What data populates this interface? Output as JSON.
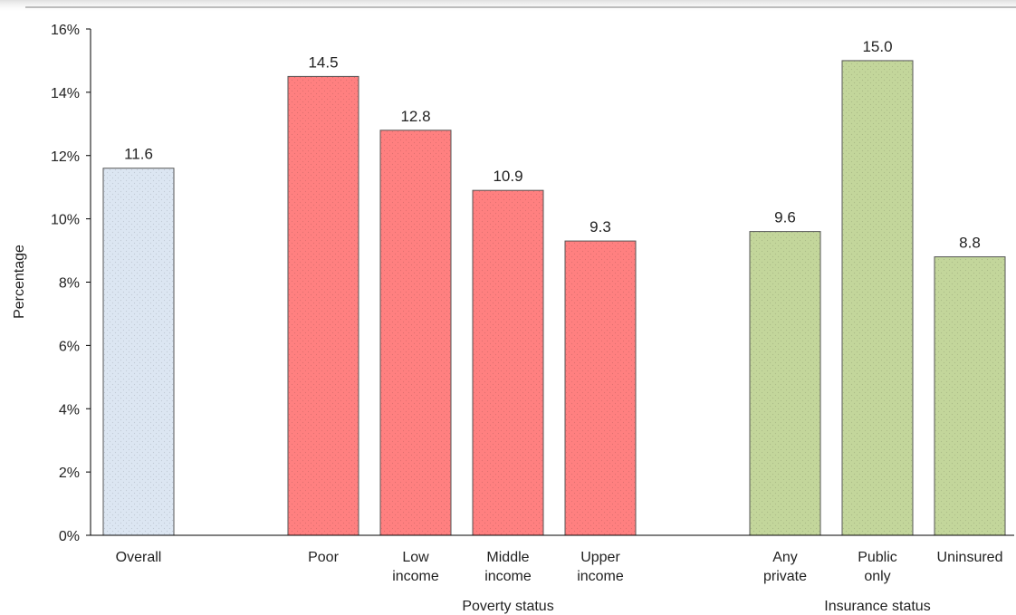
{
  "chart_data": {
    "type": "bar",
    "ylabel": "Percentage",
    "ylim": [
      0,
      16
    ],
    "ytick_step": 2,
    "ytick_labels": [
      "0%",
      "2%",
      "4%",
      "6%",
      "8%",
      "10%",
      "12%",
      "14%",
      "16%"
    ],
    "grid": false,
    "legend": false,
    "bars": [
      {
        "label_lines": [
          "Overall"
        ],
        "value": 11.6,
        "value_label": "11.6",
        "group": 0
      },
      {
        "label_lines": [
          "Poor"
        ],
        "value": 14.5,
        "value_label": "14.5",
        "group": 1
      },
      {
        "label_lines": [
          "Low",
          "income"
        ],
        "value": 12.8,
        "value_label": "12.8",
        "group": 1
      },
      {
        "label_lines": [
          "Middle",
          "income"
        ],
        "value": 10.9,
        "value_label": "10.9",
        "group": 1
      },
      {
        "label_lines": [
          "Upper",
          "income"
        ],
        "value": 9.3,
        "value_label": "9.3",
        "group": 1
      },
      {
        "label_lines": [
          "Any",
          "private"
        ],
        "value": 9.6,
        "value_label": "9.6",
        "group": 2
      },
      {
        "label_lines": [
          "Public",
          "only"
        ],
        "value": 15.0,
        "value_label": "15.0",
        "group": 2
      },
      {
        "label_lines": [
          "Uninsured"
        ],
        "value": 8.8,
        "value_label": "8.8",
        "group": 2
      }
    ],
    "groups": [
      {
        "name": "",
        "color": "#dce6f2"
      },
      {
        "name": "Poverty status",
        "color": "#ff8080"
      },
      {
        "name": "Insurance status",
        "color": "#c3d69b"
      }
    ]
  }
}
